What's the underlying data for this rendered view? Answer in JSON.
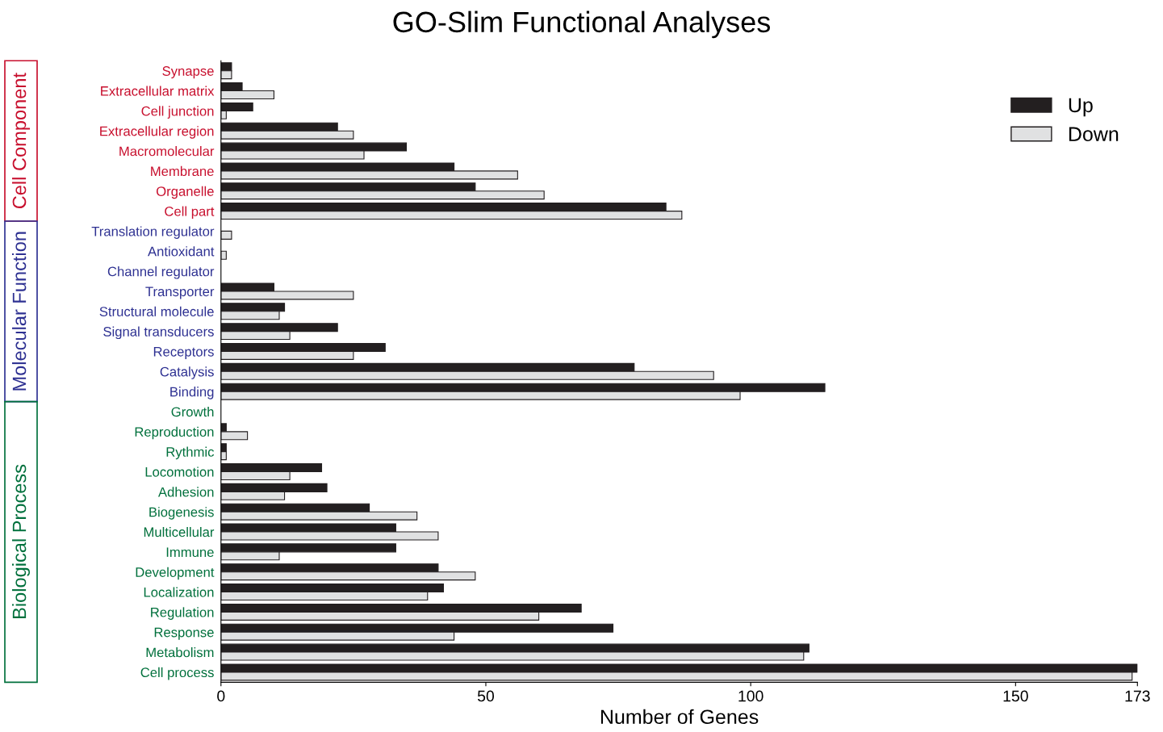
{
  "chart_data": {
    "type": "bar",
    "orientation": "horizontal",
    "title": "GO-Slim Functional Analyses",
    "xlabel": "Number of Genes",
    "categories": [
      "Synapse",
      "Extracellular matrix",
      "Cell junction",
      "Extracellular region",
      "Macromolecular",
      "Membrane",
      "Organelle",
      "Cell part",
      "Translation regulator",
      "Antioxidant",
      "Channel regulator",
      "Transporter",
      "Structural molecule",
      "Signal transducers",
      "Receptors",
      "Catalysis",
      "Binding",
      "Growth",
      "Reproduction",
      "Rythmic",
      "Locomotion",
      "Adhesion",
      "Biogenesis",
      "Multicellular",
      "Immune",
      "Development",
      "Localization",
      "Regulation",
      "Response",
      "Metabolism",
      "Cell process"
    ],
    "series": [
      {
        "name": "Up",
        "color": "#231f20",
        "values": [
          2,
          4,
          6,
          22,
          35,
          44,
          48,
          84,
          0,
          0,
          0,
          10,
          12,
          22,
          31,
          78,
          114,
          0,
          1,
          1,
          19,
          20,
          28,
          33,
          33,
          41,
          42,
          68,
          74,
          111,
          173
        ]
      },
      {
        "name": "Down",
        "color": "#e0e1e2",
        "values": [
          2,
          10,
          1,
          25,
          27,
          56,
          61,
          87,
          2,
          1,
          0,
          25,
          11,
          13,
          25,
          93,
          98,
          0,
          5,
          1,
          13,
          12,
          37,
          41,
          11,
          48,
          39,
          60,
          44,
          110,
          172
        ]
      }
    ],
    "annotations": [
      "Cell Component",
      "Molecular Function",
      "Biological Process"
    ],
    "xlim": [
      0,
      173
    ],
    "xticks": [
      0,
      50,
      100,
      150,
      173
    ],
    "grid": false,
    "legend": "top right"
  }
}
